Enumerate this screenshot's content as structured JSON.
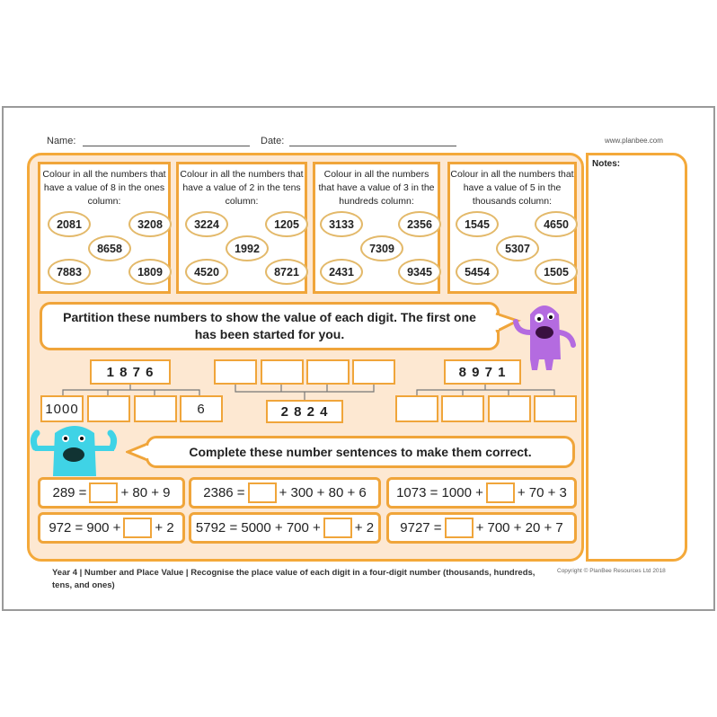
{
  "header": {
    "name_label": "Name:",
    "date_label": "Date:",
    "website": "www.planbee.com",
    "notes_label": "Notes:"
  },
  "colour_tasks": [
    {
      "instruction": "Colour in all the numbers that have a value of 8 in the ones column:",
      "numbers": [
        "2081",
        "3208",
        "8658",
        "7883",
        "1809"
      ]
    },
    {
      "instruction": "Colour in all the numbers that have a value of 2 in the tens column:",
      "numbers": [
        "3224",
        "1205",
        "1992",
        "4520",
        "8721"
      ]
    },
    {
      "instruction": "Colour in all the numbers that have a value of 3 in the hundreds column:",
      "numbers": [
        "3133",
        "2356",
        "7309",
        "2431",
        "9345"
      ]
    },
    {
      "instruction": "Colour in all the numbers that have a value of 5 in the thousands column:",
      "numbers": [
        "1545",
        "4650",
        "5307",
        "5454",
        "1505"
      ]
    }
  ],
  "partition": {
    "instruction": "Partition these numbers to show the value of each digit. The first one has been started for you.",
    "numbers": [
      "1 8 7 6",
      "2 8 2 4",
      "8 9 7 1"
    ],
    "example_parts": [
      "1000",
      "",
      "",
      "6"
    ]
  },
  "sentences": {
    "instruction": "Complete these number sentences to make them correct.",
    "rows": [
      [
        {
          "pre": "289 =",
          "post": "+ 80 + 9"
        },
        {
          "pre": "2386 =",
          "post": "+ 300 + 80 + 6"
        },
        {
          "pre": "1073 = 1000 +",
          "post": "+ 70 + 3"
        }
      ],
      [
        {
          "pre": "972 = 900 +",
          "post": "+ 2"
        },
        {
          "pre": "5792 = 5000 + 700 +",
          "post": "+ 2"
        },
        {
          "pre": "9727 =",
          "post": "+ 700 + 20 + 7"
        }
      ]
    ]
  },
  "footer": {
    "description": "Year 4 | Number and Place Value | Recognise the place value of each digit in a four-digit number (thousands, hundreds, tens, and ones)",
    "copyright": "Copyright © PlanBee Resources Ltd 2018"
  },
  "colors": {
    "accent": "#f4a93a",
    "panel": "#fde8d2",
    "monster_purple": "#b46be0",
    "monster_cyan": "#3fd3e6"
  }
}
